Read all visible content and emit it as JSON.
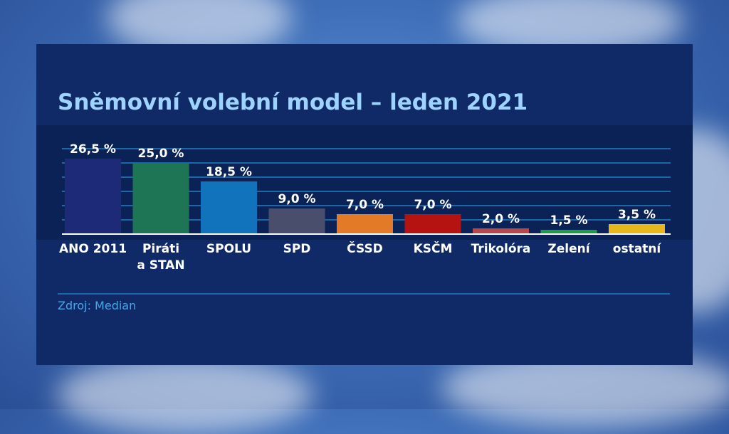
{
  "title": "Sněmovní volební model – leden 2021",
  "source": "Zdroj: Median",
  "chart_data": {
    "type": "bar",
    "title": "Sněmovní volební model – leden 2021",
    "categories": [
      "ANO 2011",
      "Piráti\na STAN",
      "SPOLU",
      "SPD",
      "ČSSD",
      "KSČM",
      "Trikolóra",
      "Zelení",
      "ostatní"
    ],
    "values": [
      26.5,
      25.0,
      18.5,
      9.0,
      7.0,
      7.0,
      2.0,
      1.5,
      3.5
    ],
    "value_labels": [
      "26,5 %",
      "25,0 %",
      "18,5 %",
      "9,0 %",
      "7,0 %",
      "7,0 %",
      "2,0 %",
      "1,5 %",
      "3,5 %"
    ],
    "colors": [
      "#1c2a78",
      "#1e7556",
      "#1273bd",
      "#4a4e6d",
      "#e37a28",
      "#b51212",
      "#b8474d",
      "#1f9a48",
      "#e6b81c"
    ],
    "ylim": [
      0,
      30
    ],
    "grid": true,
    "xlabel": "",
    "ylabel": ""
  }
}
